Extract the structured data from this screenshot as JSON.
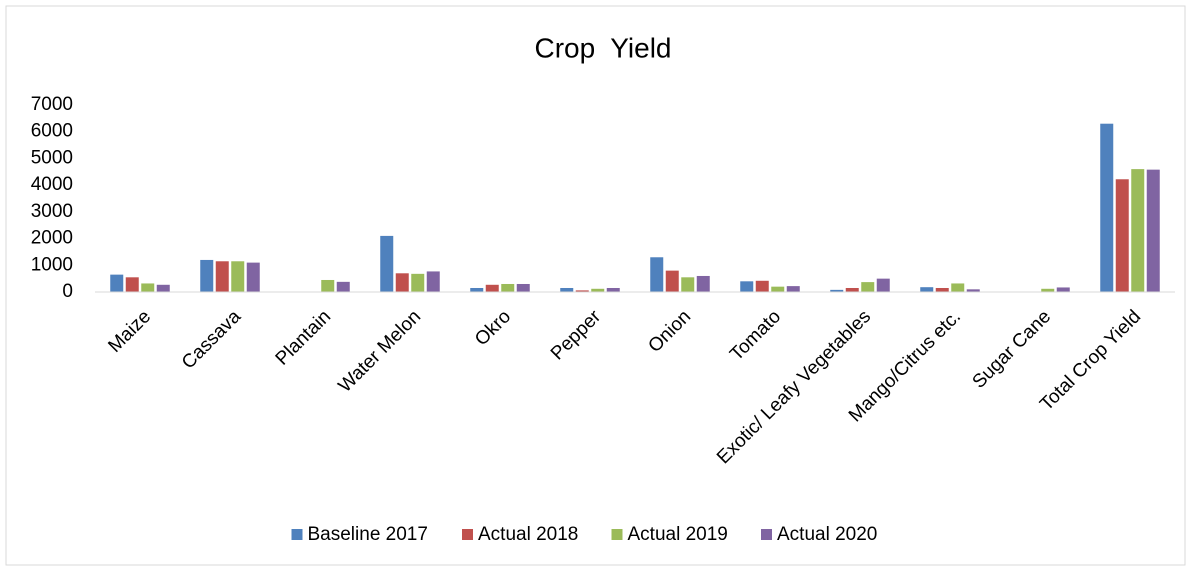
{
  "chart_data": {
    "type": "bar",
    "title": "Crop  Yield",
    "categories": [
      "Maize",
      "Cassava",
      "Plantain",
      "Water Melon",
      "Okro",
      "Pepper",
      "Onion",
      "Tomato",
      "Exotic/ Leafy Vegetables",
      "Mango/Citrus etc.",
      "Sugar Cane",
      "Total Crop Yield"
    ],
    "series": [
      {
        "name": "Baseline 2017",
        "color": "#4f81bd",
        "values": [
          650,
          1200,
          0,
          2100,
          150,
          150,
          1300,
          400,
          80,
          180,
          0,
          6300
        ]
      },
      {
        "name": "Actual 2018",
        "color": "#c0504d",
        "values": [
          550,
          1150,
          0,
          700,
          270,
          60,
          800,
          420,
          150,
          150,
          0,
          4220
        ]
      },
      {
        "name": "Actual 2019",
        "color": "#9bbb59",
        "values": [
          320,
          1150,
          450,
          680,
          300,
          120,
          550,
          200,
          370,
          320,
          120,
          4600
        ]
      },
      {
        "name": "Actual 2020",
        "color": "#8064a2",
        "values": [
          270,
          1100,
          380,
          770,
          300,
          150,
          600,
          220,
          500,
          100,
          170,
          4580
        ]
      }
    ],
    "ylim": [
      0,
      7000
    ],
    "yticks": [
      0,
      1000,
      2000,
      3000,
      4000,
      5000,
      6000,
      7000
    ],
    "grid": false,
    "legend": "bottom"
  }
}
